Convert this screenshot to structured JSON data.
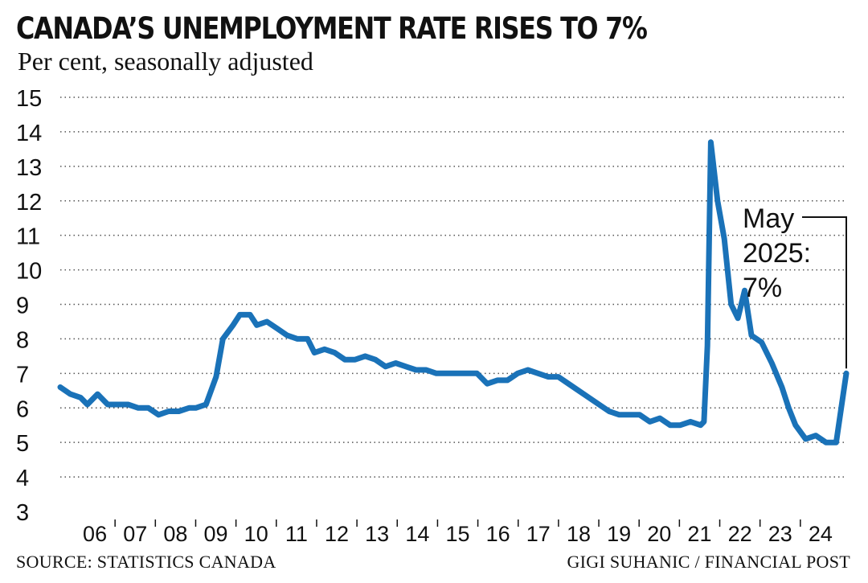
{
  "header": {
    "title": "CANADA’S UNEMPLOYMENT RATE RISES TO 7%",
    "subtitle": "Per cent, seasonally adjusted"
  },
  "footer": {
    "source": "SOURCE: STATISTICS CANADA",
    "credit": "GIGI SUHANIC / FINANCIAL POST"
  },
  "annotation": {
    "lines": [
      "May",
      "2025:",
      "7%"
    ]
  },
  "colors": {
    "line": "#1a72b8",
    "grid": "#555555",
    "text": "#111111"
  },
  "chart_data": {
    "type": "line",
    "title": "CANADA’S UNEMPLOYMENT RATE RISES TO 7%",
    "subtitle": "Per cent, seasonally adjusted",
    "xlabel": "",
    "ylabel": "",
    "ylim": [
      3,
      15
    ],
    "yticks": [
      3,
      4,
      5,
      6,
      7,
      8,
      9,
      10,
      11,
      12,
      13,
      14,
      15
    ],
    "xlim": [
      "2006-01",
      "2025-05"
    ],
    "xtick_labels": [
      "06",
      "07",
      "08",
      "09",
      "10",
      "11",
      "12",
      "13",
      "14",
      "15",
      "16",
      "17",
      "18",
      "19",
      "20",
      "21",
      "22",
      "23",
      "24"
    ],
    "grid": "horizontal dotted",
    "legend": "none",
    "series": [
      {
        "values": [
          [
            "2006-01",
            6.6
          ],
          [
            "2006-04",
            6.4
          ],
          [
            "2006-07",
            6.3
          ],
          [
            "2006-09",
            6.1
          ],
          [
            "2006-12",
            6.4
          ],
          [
            "2007-03",
            6.1
          ],
          [
            "2007-06",
            6.1
          ],
          [
            "2007-09",
            6.1
          ],
          [
            "2007-12",
            6.0
          ],
          [
            "2008-03",
            6.0
          ],
          [
            "2008-06",
            5.8
          ],
          [
            "2008-09",
            5.9
          ],
          [
            "2008-12",
            5.9
          ],
          [
            "2009-03",
            6.0
          ],
          [
            "2009-05",
            6.0
          ],
          [
            "2009-08",
            6.1
          ],
          [
            "2009-11",
            6.9
          ],
          [
            "2010-01",
            8.0
          ],
          [
            "2010-04",
            8.4
          ],
          [
            "2010-06",
            8.7
          ],
          [
            "2010-09",
            8.7
          ],
          [
            "2010-11",
            8.4
          ],
          [
            "2011-02",
            8.5
          ],
          [
            "2011-05",
            8.3
          ],
          [
            "2011-08",
            8.1
          ],
          [
            "2011-11",
            8.0
          ],
          [
            "2012-02",
            8.0
          ],
          [
            "2012-04",
            7.6
          ],
          [
            "2012-07",
            7.7
          ],
          [
            "2012-10",
            7.6
          ],
          [
            "2013-01",
            7.4
          ],
          [
            "2013-04",
            7.4
          ],
          [
            "2013-07",
            7.5
          ],
          [
            "2013-10",
            7.4
          ],
          [
            "2014-01",
            7.2
          ],
          [
            "2014-04",
            7.3
          ],
          [
            "2014-07",
            7.2
          ],
          [
            "2014-10",
            7.1
          ],
          [
            "2015-01",
            7.1
          ],
          [
            "2015-04",
            7.0
          ],
          [
            "2015-07",
            7.0
          ],
          [
            "2015-10",
            7.0
          ],
          [
            "2016-01",
            7.0
          ],
          [
            "2016-04",
            7.0
          ],
          [
            "2016-07",
            6.7
          ],
          [
            "2016-10",
            6.8
          ],
          [
            "2017-01",
            6.8
          ],
          [
            "2017-04",
            7.0
          ],
          [
            "2017-07",
            7.1
          ],
          [
            "2017-10",
            7.0
          ],
          [
            "2018-01",
            6.9
          ],
          [
            "2018-04",
            6.9
          ],
          [
            "2018-07",
            6.7
          ],
          [
            "2018-10",
            6.5
          ],
          [
            "2019-01",
            6.3
          ],
          [
            "2019-04",
            6.1
          ],
          [
            "2019-07",
            5.9
          ],
          [
            "2019-10",
            5.8
          ],
          [
            "2020-01",
            5.8
          ],
          [
            "2020-04",
            5.8
          ],
          [
            "2020-07",
            5.6
          ],
          [
            "2020-10",
            5.7
          ],
          [
            "2021-01",
            5.5
          ],
          [
            "2021-04",
            5.5
          ],
          [
            "2021-07",
            5.6
          ],
          [
            "2021-10",
            5.5
          ],
          [
            "2021-11",
            5.6
          ],
          [
            "2021-12",
            7.8
          ],
          [
            "2022-01",
            13.7
          ],
          [
            "2022-03",
            12.0
          ],
          [
            "2022-05",
            10.9
          ],
          [
            "2022-07",
            9.0
          ],
          [
            "2022-09",
            8.6
          ],
          [
            "2022-11",
            9.4
          ],
          [
            "2023-01",
            8.1
          ],
          [
            "2023-04",
            7.9
          ],
          [
            "2023-07",
            7.3
          ],
          [
            "2023-10",
            6.6
          ],
          [
            "2023-12",
            6.0
          ],
          [
            "2024-02",
            5.5
          ],
          [
            "2024-05",
            5.1
          ],
          [
            "2024-08",
            5.2
          ],
          [
            "2024-11",
            5.0
          ],
          [
            "2025-02",
            5.0
          ],
          [
            "2025-05",
            7.0
          ]
        ]
      }
    ]
  }
}
